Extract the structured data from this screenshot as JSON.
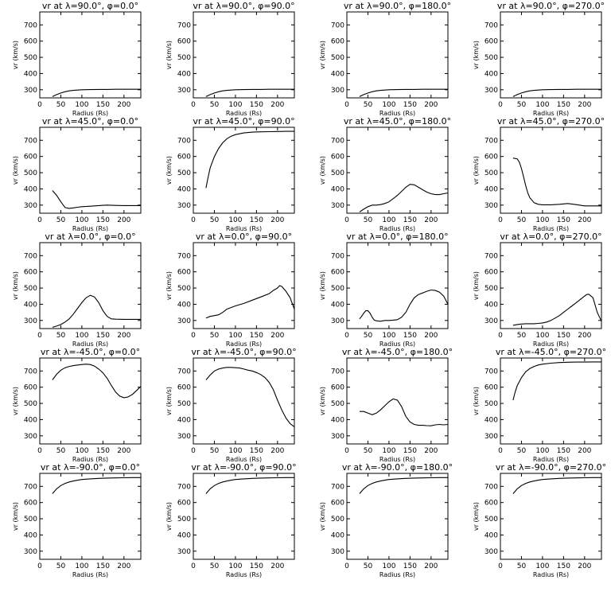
{
  "chart_data": [
    {
      "type": "line",
      "title": "v<sub>r</sub> at λ=90.0°, φ=0.0°",
      "title_text": "vr at λ=90.0°, φ=0.0°",
      "xlabel": "Radius (Rs)",
      "ylabel": "vr (km/s)",
      "xlim": [
        0,
        240
      ],
      "ylim": [
        250,
        780
      ],
      "xticks": [
        0,
        50,
        100,
        150,
        200
      ],
      "yticks": [
        300,
        400,
        500,
        600,
        700
      ],
      "x": [
        30,
        40,
        50,
        60,
        70,
        80,
        90,
        100,
        120,
        140,
        160,
        180,
        200,
        220,
        240
      ],
      "y": [
        258,
        270,
        280,
        288,
        293,
        296,
        298,
        300,
        301,
        302,
        302,
        303,
        303,
        303,
        303
      ]
    },
    {
      "type": "line",
      "title": "vr at λ=90.0°, φ=90.0°",
      "xlabel": "Radius (Rs)",
      "ylabel": "vr (km/s)",
      "xlim": [
        0,
        240
      ],
      "ylim": [
        250,
        780
      ],
      "xticks": [
        0,
        50,
        100,
        150,
        200
      ],
      "yticks": [
        300,
        400,
        500,
        600,
        700
      ],
      "x": [
        30,
        40,
        50,
        60,
        70,
        80,
        90,
        100,
        120,
        140,
        160,
        180,
        200,
        220,
        240
      ],
      "y": [
        258,
        270,
        280,
        288,
        293,
        296,
        298,
        300,
        301,
        302,
        302,
        303,
        303,
        303,
        303
      ]
    },
    {
      "type": "line",
      "title": "vr at λ=90.0°, φ=180.0°",
      "xlabel": "Radius (Rs)",
      "ylabel": "vr (km/s)",
      "xlim": [
        0,
        240
      ],
      "ylim": [
        250,
        780
      ],
      "xticks": [
        0,
        50,
        100,
        150,
        200
      ],
      "yticks": [
        300,
        400,
        500,
        600,
        700
      ],
      "x": [
        30,
        40,
        50,
        60,
        70,
        80,
        90,
        100,
        120,
        140,
        160,
        180,
        200,
        220,
        240
      ],
      "y": [
        258,
        270,
        280,
        288,
        293,
        296,
        298,
        300,
        301,
        302,
        302,
        303,
        303,
        303,
        303
      ]
    },
    {
      "type": "line",
      "title": "vr at λ=90.0°, φ=270.0°",
      "xlabel": "Radius (Rs)",
      "ylabel": "vr (km/s)",
      "xlim": [
        0,
        240
      ],
      "ylim": [
        250,
        780
      ],
      "xticks": [
        0,
        50,
        100,
        150,
        200
      ],
      "yticks": [
        300,
        400,
        500,
        600,
        700
      ],
      "x": [
        30,
        40,
        50,
        60,
        70,
        80,
        90,
        100,
        120,
        140,
        160,
        180,
        200,
        220,
        240
      ],
      "y": [
        258,
        270,
        280,
        288,
        293,
        296,
        298,
        300,
        301,
        302,
        302,
        303,
        303,
        303,
        303
      ]
    },
    {
      "type": "line",
      "title": "vr at λ=45.0°, φ=0.0°",
      "xlabel": "Radius (Rs)",
      "ylabel": "vr (km/s)",
      "xlim": [
        0,
        240
      ],
      "ylim": [
        250,
        780
      ],
      "xticks": [
        0,
        50,
        100,
        150,
        200
      ],
      "yticks": [
        300,
        400,
        500,
        600,
        700
      ],
      "x": [
        30,
        40,
        50,
        60,
        70,
        80,
        90,
        100,
        120,
        140,
        160,
        180,
        200,
        220,
        240
      ],
      "y": [
        390,
        360,
        320,
        285,
        280,
        283,
        287,
        290,
        293,
        297,
        300,
        298,
        297,
        297,
        297
      ]
    },
    {
      "type": "line",
      "title": "vr at λ=45.0°, φ=90.0°",
      "xlabel": "Radius (Rs)",
      "ylabel": "vr (km/s)",
      "xlim": [
        0,
        240
      ],
      "ylim": [
        250,
        780
      ],
      "xticks": [
        0,
        50,
        100,
        150,
        200
      ],
      "yticks": [
        300,
        400,
        500,
        600,
        700
      ],
      "x": [
        30,
        35,
        40,
        50,
        60,
        70,
        80,
        90,
        100,
        120,
        140,
        160,
        180,
        200,
        220,
        240
      ],
      "y": [
        405,
        470,
        530,
        600,
        650,
        685,
        710,
        725,
        735,
        745,
        750,
        752,
        753,
        754,
        755,
        755
      ]
    },
    {
      "type": "line",
      "title": "vr at λ=45.0°, φ=180.0°",
      "xlabel": "Radius (Rs)",
      "ylabel": "vr (km/s)",
      "xlim": [
        0,
        240
      ],
      "ylim": [
        250,
        780
      ],
      "xticks": [
        0,
        50,
        100,
        150,
        200
      ],
      "yticks": [
        300,
        400,
        500,
        600,
        700
      ],
      "x": [
        30,
        40,
        50,
        60,
        70,
        80,
        90,
        100,
        110,
        120,
        130,
        140,
        150,
        160,
        170,
        180,
        190,
        200,
        210,
        220,
        230,
        240
      ],
      "y": [
        258,
        275,
        290,
        300,
        300,
        303,
        310,
        320,
        340,
        360,
        385,
        410,
        428,
        425,
        410,
        395,
        380,
        370,
        365,
        365,
        370,
        375
      ]
    },
    {
      "type": "line",
      "title": "vr at λ=45.0°, φ=270.0°",
      "xlabel": "Radius (Rs)",
      "ylabel": "vr (km/s)",
      "xlim": [
        0,
        240
      ],
      "ylim": [
        250,
        780
      ],
      "xticks": [
        0,
        50,
        100,
        150,
        200
      ],
      "yticks": [
        300,
        400,
        500,
        600,
        700
      ],
      "x": [
        30,
        40,
        45,
        50,
        55,
        60,
        65,
        70,
        80,
        90,
        100,
        120,
        140,
        160,
        180,
        200,
        220,
        240
      ],
      "y": [
        590,
        585,
        565,
        525,
        475,
        420,
        375,
        345,
        315,
        305,
        302,
        302,
        305,
        310,
        303,
        295,
        295,
        295
      ]
    },
    {
      "type": "line",
      "title": "vr at λ=0.0°, φ=0.0°",
      "xlabel": "Radius (Rs)",
      "ylabel": "vr (km/s)",
      "xlim": [
        0,
        240
      ],
      "ylim": [
        250,
        780
      ],
      "xticks": [
        0,
        50,
        100,
        150,
        200
      ],
      "yticks": [
        300,
        400,
        500,
        600,
        700
      ],
      "x": [
        30,
        40,
        50,
        60,
        70,
        80,
        90,
        100,
        110,
        120,
        130,
        140,
        150,
        160,
        170,
        180,
        200,
        220,
        240
      ],
      "y": [
        258,
        265,
        275,
        290,
        310,
        340,
        375,
        410,
        440,
        455,
        445,
        410,
        360,
        325,
        310,
        308,
        307,
        307,
        307
      ]
    },
    {
      "type": "line",
      "title": "vr at λ=0.0°, φ=90.0°",
      "xlabel": "Radius (Rs)",
      "ylabel": "vr (km/s)",
      "xlim": [
        0,
        240
      ],
      "ylim": [
        250,
        780
      ],
      "xticks": [
        0,
        50,
        100,
        150,
        200
      ],
      "yticks": [
        300,
        400,
        500,
        600,
        700
      ],
      "x": [
        30,
        40,
        50,
        60,
        70,
        80,
        90,
        100,
        120,
        140,
        160,
        180,
        190,
        200,
        205,
        210,
        220,
        230,
        240
      ],
      "y": [
        315,
        325,
        330,
        335,
        350,
        370,
        380,
        390,
        405,
        425,
        445,
        465,
        485,
        500,
        515,
        510,
        480,
        440,
        370
      ]
    },
    {
      "type": "line",
      "title": "vr at λ=0.0°, φ=180.0°",
      "xlabel": "Radius (Rs)",
      "ylabel": "vr (km/s)",
      "xlim": [
        0,
        240
      ],
      "ylim": [
        250,
        780
      ],
      "xticks": [
        0,
        50,
        100,
        150,
        200
      ],
      "yticks": [
        300,
        400,
        500,
        600,
        700
      ],
      "x": [
        30,
        35,
        40,
        45,
        50,
        55,
        60,
        65,
        70,
        80,
        90,
        100,
        110,
        120,
        130,
        140,
        150,
        160,
        170,
        180,
        190,
        200,
        210,
        220,
        230,
        240
      ],
      "y": [
        310,
        325,
        345,
        360,
        360,
        345,
        320,
        302,
        298,
        295,
        300,
        300,
        302,
        305,
        320,
        350,
        400,
        440,
        460,
        470,
        480,
        488,
        485,
        475,
        450,
        400
      ]
    },
    {
      "type": "line",
      "title": "vr at λ=0.0°, φ=270.0°",
      "xlabel": "Radius (Rs)",
      "ylabel": "vr (km/s)",
      "xlim": [
        0,
        240
      ],
      "ylim": [
        250,
        780
      ],
      "xticks": [
        0,
        50,
        100,
        150,
        200
      ],
      "yticks": [
        300,
        400,
        500,
        600,
        700
      ],
      "x": [
        30,
        40,
        50,
        60,
        70,
        80,
        90,
        100,
        110,
        120,
        130,
        140,
        150,
        160,
        170,
        180,
        190,
        200,
        205,
        210,
        220,
        230,
        240
      ],
      "y": [
        270,
        275,
        278,
        280,
        280,
        280,
        282,
        285,
        290,
        300,
        315,
        330,
        350,
        370,
        390,
        410,
        430,
        450,
        460,
        462,
        440,
        350,
        295
      ]
    },
    {
      "type": "line",
      "title": "vr at λ=-45.0°, φ=0.0°",
      "xlabel": "Radius (Rs)",
      "ylabel": "vr (km/s)",
      "xlim": [
        0,
        240
      ],
      "ylim": [
        250,
        780
      ],
      "xticks": [
        0,
        50,
        100,
        150,
        200
      ],
      "yticks": [
        300,
        400,
        500,
        600,
        700
      ],
      "x": [
        30,
        40,
        50,
        60,
        70,
        80,
        90,
        100,
        110,
        120,
        130,
        140,
        150,
        160,
        170,
        180,
        190,
        200,
        210,
        220,
        230,
        240
      ],
      "y": [
        645,
        680,
        705,
        720,
        728,
        733,
        737,
        740,
        742,
        740,
        730,
        712,
        688,
        655,
        610,
        570,
        545,
        535,
        540,
        555,
        580,
        605
      ]
    },
    {
      "type": "line",
      "title": "vr at λ=-45.0°, φ=90.0°",
      "xlabel": "Radius (Rs)",
      "ylabel": "vr (km/s)",
      "xlim": [
        0,
        240
      ],
      "ylim": [
        250,
        780
      ],
      "xticks": [
        0,
        50,
        100,
        150,
        200
      ],
      "yticks": [
        300,
        400,
        500,
        600,
        700
      ],
      "x": [
        30,
        40,
        50,
        60,
        70,
        80,
        90,
        100,
        110,
        120,
        130,
        140,
        150,
        160,
        170,
        180,
        190,
        200,
        210,
        220,
        230,
        240
      ],
      "y": [
        645,
        675,
        700,
        712,
        718,
        722,
        722,
        720,
        718,
        712,
        705,
        700,
        690,
        678,
        660,
        630,
        585,
        520,
        460,
        410,
        375,
        355
      ]
    },
    {
      "type": "line",
      "title": "vr at λ=-45.0°, φ=180.0°",
      "xlabel": "Radius (Rs)",
      "ylabel": "vr (km/s)",
      "xlim": [
        0,
        240
      ],
      "ylim": [
        250,
        780
      ],
      "xticks": [
        0,
        50,
        100,
        150,
        200
      ],
      "yticks": [
        300,
        400,
        500,
        600,
        700
      ],
      "x": [
        30,
        40,
        50,
        60,
        70,
        80,
        90,
        100,
        110,
        120,
        130,
        140,
        150,
        160,
        170,
        180,
        190,
        200,
        210,
        220,
        230,
        240
      ],
      "y": [
        450,
        450,
        440,
        430,
        440,
        460,
        485,
        510,
        528,
        520,
        480,
        420,
        385,
        370,
        365,
        365,
        363,
        362,
        368,
        370,
        368,
        370
      ]
    },
    {
      "type": "line",
      "title": "vr at λ=-45.0°, φ=270.0°",
      "xlabel": "Radius (Rs)",
      "ylabel": "vr (km/s)",
      "xlim": [
        0,
        240
      ],
      "ylim": [
        250,
        780
      ],
      "xticks": [
        0,
        50,
        100,
        150,
        200
      ],
      "yticks": [
        300,
        400,
        500,
        600,
        700
      ],
      "x": [
        30,
        35,
        40,
        50,
        60,
        70,
        80,
        90,
        100,
        120,
        140,
        160,
        180,
        200,
        220,
        240
      ],
      "y": [
        520,
        570,
        610,
        660,
        695,
        715,
        728,
        737,
        742,
        748,
        752,
        754,
        755,
        755,
        756,
        756
      ]
    },
    {
      "type": "line",
      "title": "vr at λ=-90.0°, φ=0.0°",
      "xlabel": "Radius (Rs)",
      "ylabel": "vr (km/s)",
      "xlim": [
        0,
        240
      ],
      "ylim": [
        250,
        780
      ],
      "xticks": [
        0,
        50,
        100,
        150,
        200
      ],
      "yticks": [
        300,
        400,
        500,
        600,
        700
      ],
      "x": [
        30,
        40,
        50,
        60,
        70,
        80,
        90,
        100,
        120,
        140,
        160,
        180,
        200,
        220,
        240
      ],
      "y": [
        655,
        685,
        705,
        718,
        727,
        733,
        738,
        742,
        746,
        749,
        751,
        752,
        753,
        754,
        754
      ]
    },
    {
      "type": "line",
      "title": "vr at λ=-90.0°, φ=90.0°",
      "xlabel": "Radius (Rs)",
      "ylabel": "vr (km/s)",
      "xlim": [
        0,
        240
      ],
      "ylim": [
        250,
        780
      ],
      "xticks": [
        0,
        50,
        100,
        150,
        200
      ],
      "yticks": [
        300,
        400,
        500,
        600,
        700
      ],
      "x": [
        30,
        40,
        50,
        60,
        70,
        80,
        90,
        100,
        120,
        140,
        160,
        180,
        200,
        220,
        240
      ],
      "y": [
        655,
        685,
        705,
        718,
        727,
        733,
        738,
        742,
        746,
        749,
        751,
        752,
        753,
        754,
        754
      ]
    },
    {
      "type": "line",
      "title": "vr at λ=-90.0°, φ=180.0°",
      "xlabel": "Radius (Rs)",
      "ylabel": "vr (km/s)",
      "xlim": [
        0,
        240
      ],
      "ylim": [
        250,
        780
      ],
      "xticks": [
        0,
        50,
        100,
        150,
        200
      ],
      "yticks": [
        300,
        400,
        500,
        600,
        700
      ],
      "x": [
        30,
        40,
        50,
        60,
        70,
        80,
        90,
        100,
        120,
        140,
        160,
        180,
        200,
        220,
        240
      ],
      "y": [
        655,
        685,
        705,
        718,
        727,
        733,
        738,
        742,
        746,
        749,
        751,
        752,
        753,
        754,
        754
      ]
    },
    {
      "type": "line",
      "title": "vr at λ=-90.0°, φ=270.0°",
      "xlabel": "Radius (Rs)",
      "ylabel": "vr (km/s)",
      "xlim": [
        0,
        240
      ],
      "ylim": [
        250,
        780
      ],
      "xticks": [
        0,
        50,
        100,
        150,
        200
      ],
      "yticks": [
        300,
        400,
        500,
        600,
        700
      ],
      "x": [
        30,
        40,
        50,
        60,
        70,
        80,
        90,
        100,
        120,
        140,
        160,
        180,
        200,
        220,
        240
      ],
      "y": [
        655,
        685,
        705,
        718,
        727,
        733,
        738,
        742,
        746,
        749,
        751,
        752,
        753,
        754,
        754
      ]
    }
  ]
}
